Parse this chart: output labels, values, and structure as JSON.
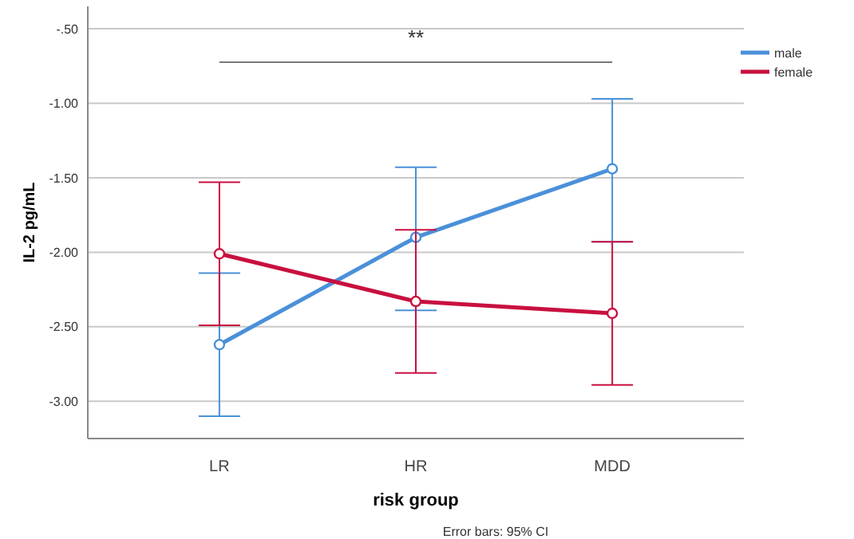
{
  "chart_data": {
    "type": "line",
    "categories": [
      "LR",
      "HR",
      "MDD"
    ],
    "xlabel": "risk group",
    "ylabel": "IL-2 pg/mL",
    "ylim": [
      -3.25,
      -0.35
    ],
    "yticks": [
      {
        "value": -0.5,
        "label": "-.50"
      },
      {
        "value": -1,
        "label": "-1.00"
      },
      {
        "value": -1.5,
        "label": "-1.50"
      },
      {
        "value": -2,
        "label": "-2.00"
      },
      {
        "value": -2.5,
        "label": "-2.50"
      },
      {
        "value": -3,
        "label": "-3.00"
      }
    ],
    "series": [
      {
        "name": "male",
        "color": "#4a90d9",
        "values": [
          -2.62,
          -1.9,
          -1.44
        ],
        "errors": [
          [
            -3.1,
            -2.14
          ],
          [
            -2.39,
            -1.43
          ],
          [
            -1.93,
            -0.97
          ]
        ]
      },
      {
        "name": "female",
        "color": "#c8103f",
        "values": [
          -2.01,
          -2.33,
          -2.41
        ],
        "errors": [
          [
            -2.49,
            -1.53
          ],
          [
            -2.81,
            -1.85
          ],
          [
            -2.89,
            -1.93
          ]
        ]
      }
    ],
    "annotations": [
      "**",
      "Error bars: 95% CI"
    ],
    "grid": "y",
    "legend": "top right",
    "marker": "circle",
    "line_style": "solid"
  }
}
